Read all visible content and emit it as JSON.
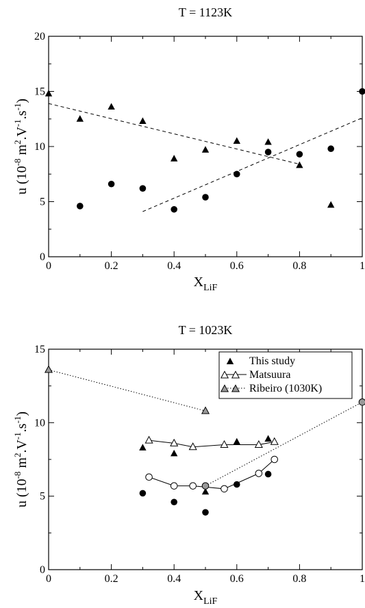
{
  "chart_data": [
    {
      "type": "scatter",
      "title": "T = 1123K",
      "xlabel": {
        "base": "X",
        "sub": "LiF"
      },
      "ylabel": {
        "prefix": "u (10",
        "exp1": "-8",
        "mid1": " m",
        "exp2": "2",
        "mid2": ".V",
        "exp3": "-1",
        "mid3": ".s",
        "exp4": "-1",
        "suffix": ")"
      },
      "xlim": [
        0,
        1
      ],
      "ylim": [
        0,
        20
      ],
      "xticks": [
        "0",
        "0.2",
        "0.4",
        "0.6",
        "0.8",
        "1"
      ],
      "xtick_values": [
        0,
        0.2,
        0.4,
        0.6,
        0.8,
        1
      ],
      "yticks": [
        "0",
        "5",
        "10",
        "15",
        "20"
      ],
      "ytick_values": [
        0,
        5,
        10,
        15,
        20
      ],
      "grid": false,
      "series": [
        {
          "marker": "triangle-filled",
          "color": "#000000",
          "x": [
            0.0,
            0.1,
            0.2,
            0.3,
            0.4,
            0.5,
            0.6,
            0.7,
            0.8,
            0.9
          ],
          "y": [
            14.8,
            12.5,
            13.6,
            12.3,
            8.9,
            9.7,
            10.5,
            10.4,
            8.3,
            4.7
          ]
        },
        {
          "marker": "circle-filled",
          "color": "#000000",
          "x": [
            0.1,
            0.2,
            0.3,
            0.4,
            0.5,
            0.6,
            0.7,
            0.8,
            0.9,
            1.0
          ],
          "y": [
            4.6,
            6.6,
            6.2,
            4.3,
            5.4,
            7.5,
            9.5,
            9.3,
            9.8,
            15.0
          ]
        }
      ],
      "fit_lines": [
        {
          "style": "dashed",
          "x": [
            0.0,
            0.8
          ],
          "y": [
            13.9,
            8.4
          ]
        },
        {
          "style": "dashed",
          "x": [
            0.3,
            1.0
          ],
          "y": [
            4.1,
            12.6
          ]
        }
      ]
    },
    {
      "type": "scatter",
      "title": "T = 1023K",
      "xlabel": {
        "base": "X",
        "sub": "LiF"
      },
      "ylabel": {
        "prefix": "u (10",
        "exp1": "-8",
        "mid1": " m",
        "exp2": "2",
        "mid2": ".V",
        "exp3": "-1",
        "mid3": ".s",
        "exp4": "-1",
        "suffix": ")"
      },
      "xlim": [
        0,
        1
      ],
      "ylim": [
        0,
        15
      ],
      "xticks": [
        "0",
        "0.2",
        "0.4",
        "0.6",
        "0.8",
        "1"
      ],
      "xtick_values": [
        0,
        0.2,
        0.4,
        0.6,
        0.8,
        1
      ],
      "yticks": [
        "0",
        "5",
        "10",
        "15"
      ],
      "ytick_values": [
        0,
        5,
        10,
        15
      ],
      "grid": false,
      "legend_position": "top-right",
      "legend": [
        "This study",
        "Matsuura",
        "Ribeiro (1030K)"
      ],
      "series": [
        {
          "marker": "triangle-filled",
          "color": "#000000",
          "line": "none",
          "x": [
            0.3,
            0.4,
            0.5,
            0.6,
            0.7
          ],
          "y": [
            8.3,
            7.9,
            5.3,
            8.7,
            8.9
          ]
        },
        {
          "marker": "circle-filled",
          "color": "#000000",
          "line": "none",
          "x": [
            0.3,
            0.4,
            0.5,
            0.6,
            0.7
          ],
          "y": [
            5.2,
            4.6,
            3.9,
            5.8,
            6.5
          ]
        },
        {
          "marker": "triangle-open",
          "color": "#000000",
          "line": "solid",
          "x": [
            0.32,
            0.4,
            0.46,
            0.56,
            0.67,
            0.72
          ],
          "y": [
            8.8,
            8.6,
            8.35,
            8.5,
            8.5,
            8.7
          ]
        },
        {
          "marker": "circle-open",
          "color": "#000000",
          "line": "solid",
          "x": [
            0.32,
            0.4,
            0.46,
            0.56,
            0.67,
            0.72
          ],
          "y": [
            6.3,
            5.7,
            5.7,
            5.5,
            6.55,
            7.5
          ]
        },
        {
          "marker": "triangle-gray",
          "color": "#999999",
          "line": "dotted",
          "x": [
            0.0,
            0.5
          ],
          "y": [
            13.6,
            10.8
          ]
        },
        {
          "marker": "circle-gray",
          "color": "#999999",
          "line": "dotted",
          "x": [
            0.5,
            1.0
          ],
          "y": [
            5.7,
            11.4
          ]
        }
      ]
    }
  ]
}
